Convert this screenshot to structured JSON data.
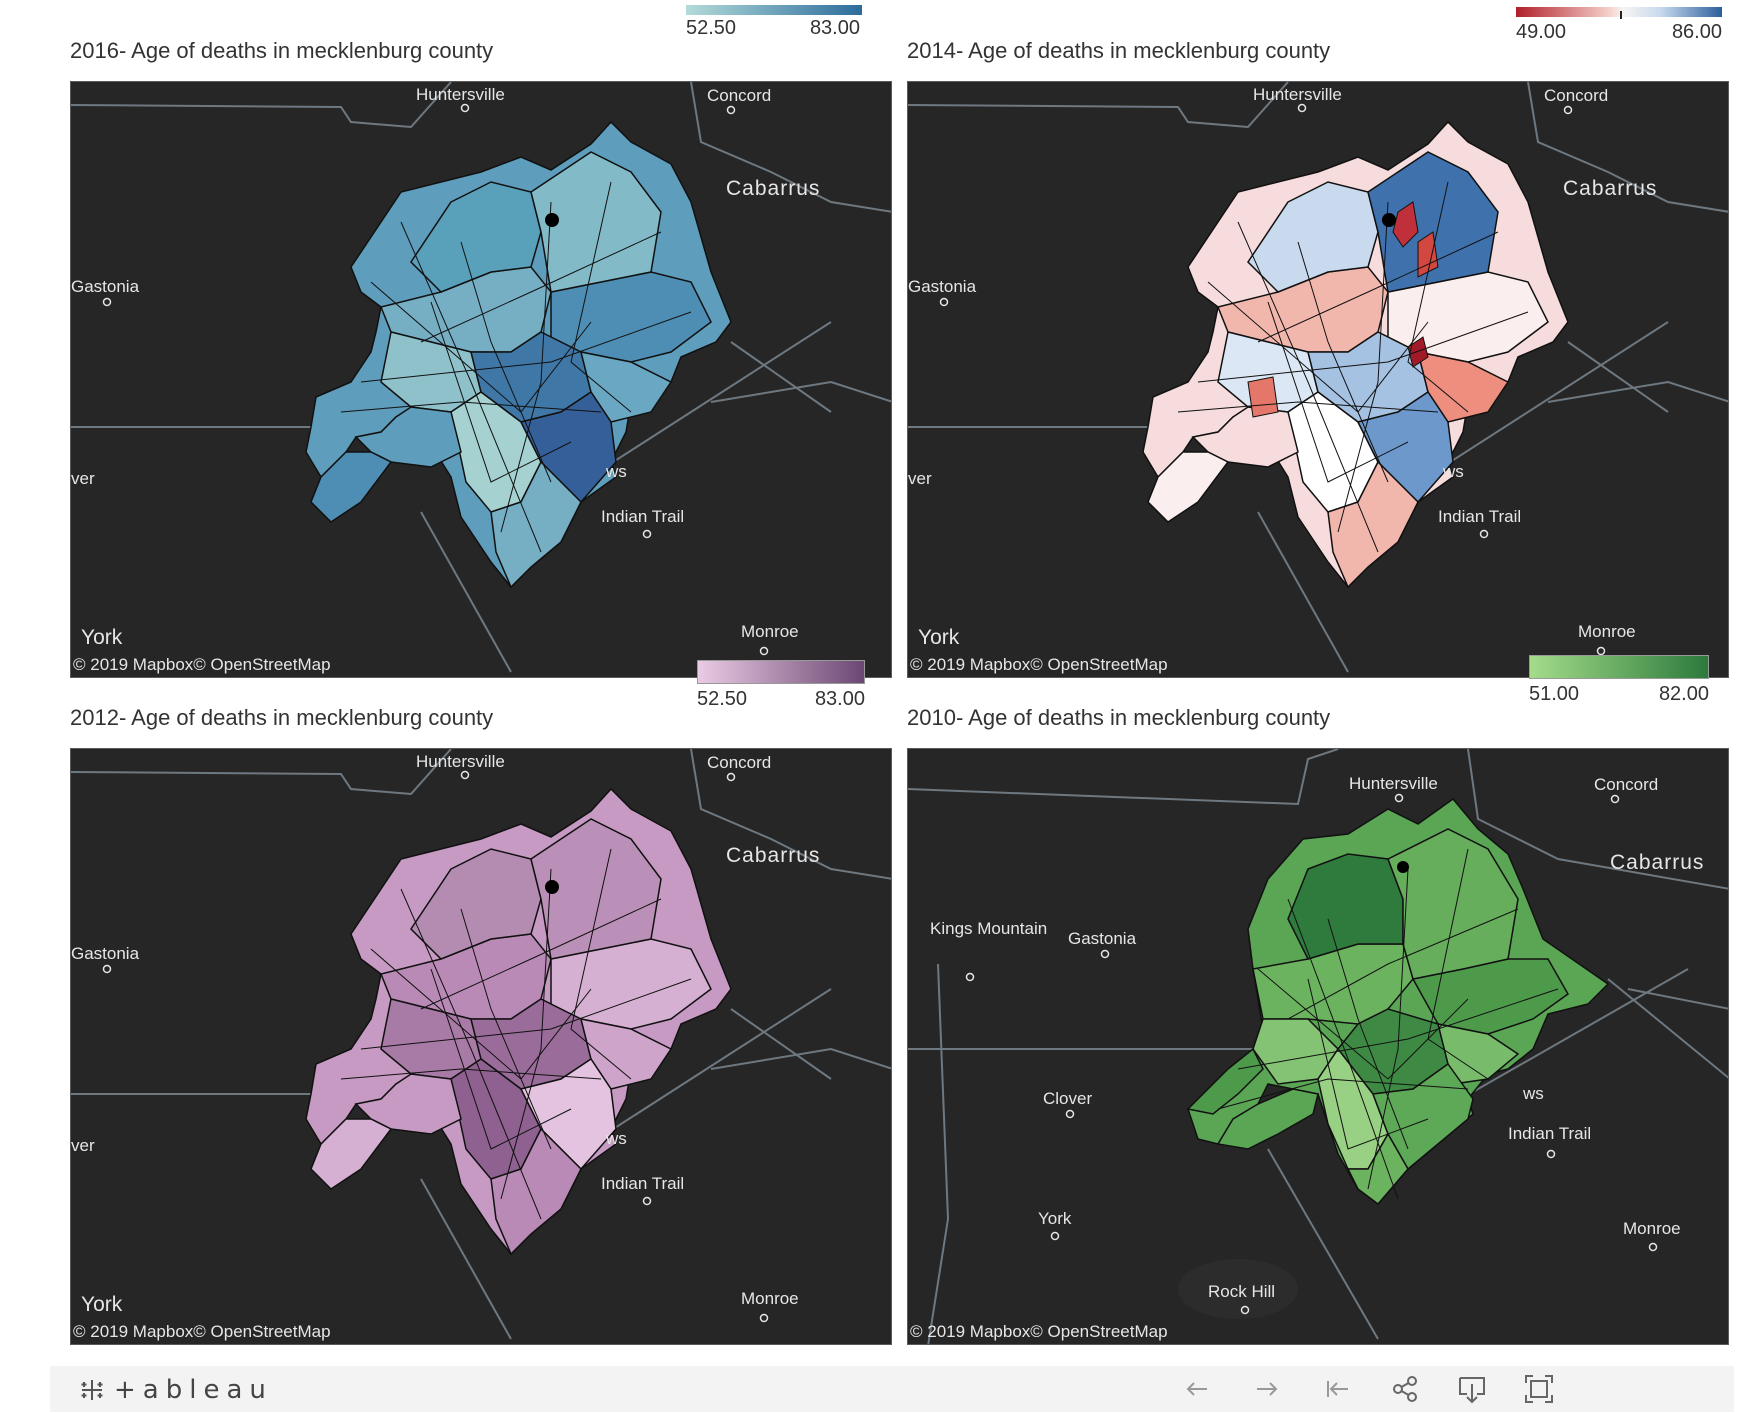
{
  "panels": [
    {
      "title": "2016- Age of deaths in mecklenburg  county",
      "legend": {
        "min": "52.50",
        "max": "83.00",
        "colors": [
          "#b3dcd9",
          "#2c6b9c"
        ],
        "type": "sequential"
      },
      "labels": [
        "Huntersville",
        "Concord",
        "Cabarrus",
        "Gastonia",
        "ws",
        "Indian Trail",
        "ver",
        "York",
        "Monroe"
      ],
      "fills": [
        "#5e9dbb",
        "#76afc4",
        "#4e8eb5",
        "#8fc1ca",
        "#3f77a6",
        "#6aa7c2",
        "#a5d2d0",
        "#355f98",
        "#59a0ba",
        "#82bac7"
      ],
      "attribution": "© 2019 Mapbox© OpenStreetMap"
    },
    {
      "title": "2014- Age of deaths in mecklenburg  county",
      "legend": {
        "min": "49.00",
        "max": "86.00",
        "colors": [
          "#b11f2b",
          "#f7f4f2",
          "#2b5f9b"
        ],
        "type": "diverging"
      },
      "labels": [
        "Huntersville",
        "Concord",
        "Cabarrus",
        "Gastonia",
        "ws",
        "Indian Trail",
        "ver",
        "York",
        "Monroe"
      ],
      "fills": [
        "#f6dcdc",
        "#f2b7ac",
        "#fbeeee",
        "#dbe7f4",
        "#a6c2e2",
        "#ed8e7f",
        "#ffffff",
        "#6c98cb",
        "#c9daef",
        "#3f71ad"
      ],
      "attribution": "© 2019 Mapbox© OpenStreetMap"
    },
    {
      "title": "2012- Age of deaths in mecklenburg  county",
      "legend": {
        "min": "52.50",
        "max": "83.00",
        "colors": [
          "#eacbe5",
          "#6b4873"
        ],
        "type": "sequential"
      },
      "labels": [
        "Huntersville",
        "Concord",
        "Cabarrus",
        "Gastonia",
        "ws",
        "Indian Trail",
        "ver",
        "York",
        "Monroe"
      ],
      "fills": [
        "#c79ac3",
        "#b98ab6",
        "#d6b0d2",
        "#a87aa6",
        "#9a6c9a",
        "#cfa4ca",
        "#8e6190",
        "#e3c3df",
        "#b48bb1",
        "#bb90b8"
      ],
      "attribution": "© 2019 Mapbox© OpenStreetMap"
    },
    {
      "title": "2010- Age of deaths in mecklenburg  county",
      "legend": {
        "min": "51.00",
        "max": "82.00",
        "colors": [
          "#a4dc8a",
          "#2c7a3c"
        ],
        "type": "sequential"
      },
      "labels": [
        "Huntersville",
        "Concord",
        "Cabarrus",
        "Kings Mountain",
        "Gastonia",
        "ws",
        "Indian Trail",
        "Clover",
        "York",
        "Monroe",
        "Rock Hill"
      ],
      "fills": [
        "#5aa654",
        "#6cb35f",
        "#4d9a4b",
        "#84c274",
        "#3e8a44",
        "#78bb6a",
        "#98d084",
        "#5da957",
        "#2f7b3d",
        "#66ae5b"
      ],
      "attribution": "© 2019 Mapbox© OpenStreetMap"
    }
  ],
  "toolbar": {
    "logo": "+ableau",
    "icons": [
      "undo-icon",
      "redo-icon",
      "revert-icon",
      "share-icon",
      "download-icon",
      "fullscreen-icon"
    ]
  }
}
